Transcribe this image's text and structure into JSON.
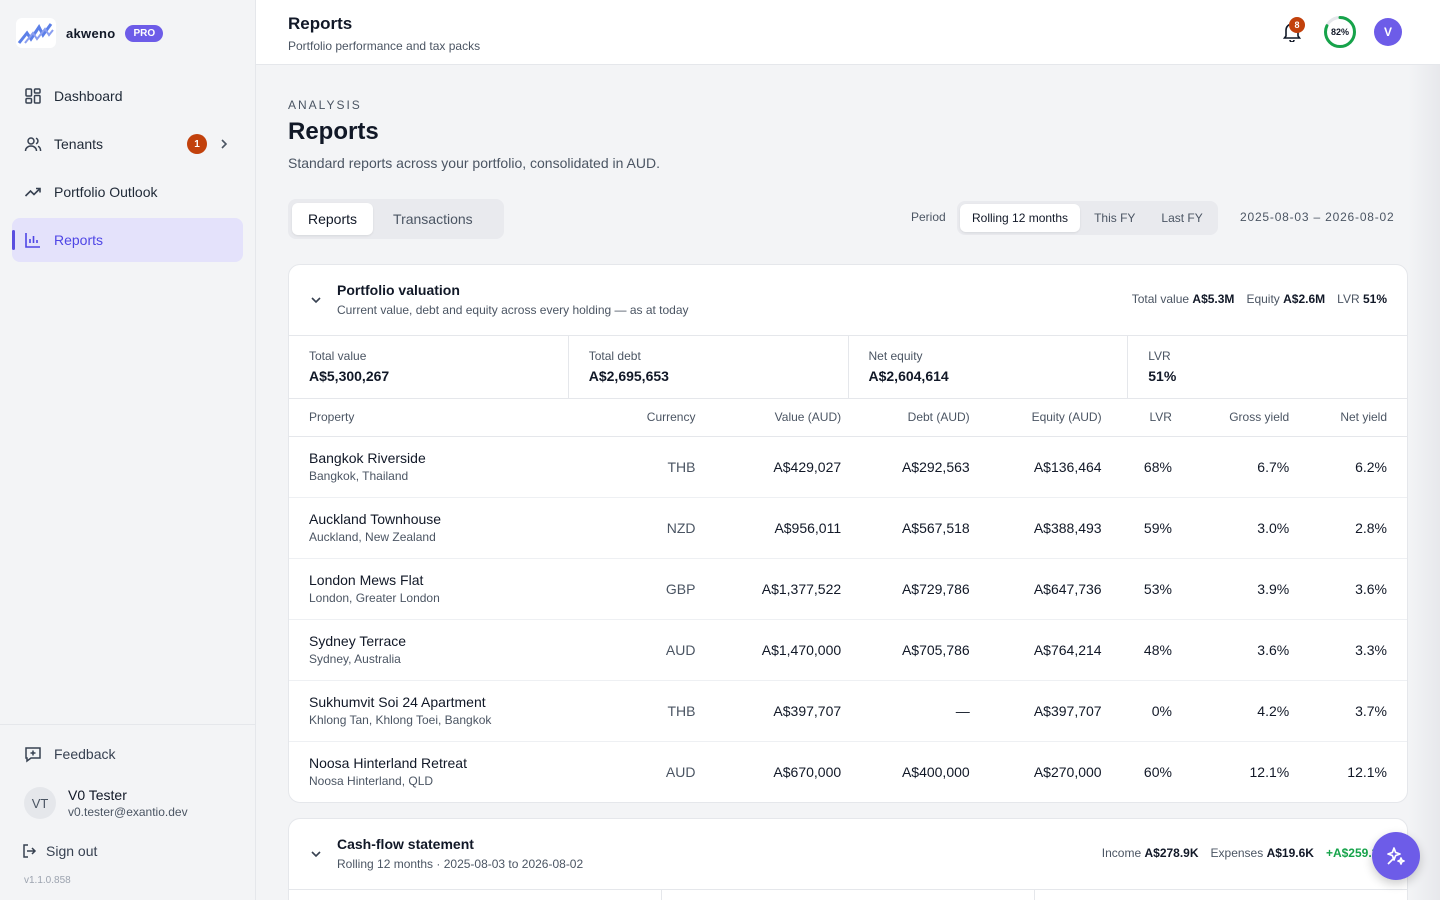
{
  "brand": {
    "name": "akweno",
    "badge": "PRO"
  },
  "sidebar": {
    "items": [
      {
        "label": "Dashboard",
        "icon": "dashboard-icon"
      },
      {
        "label": "Tenants",
        "icon": "users-icon",
        "badge": "1"
      },
      {
        "label": "Portfolio Outlook",
        "icon": "trending-up-icon"
      },
      {
        "label": "Reports",
        "icon": "bar-chart-icon",
        "active": true
      }
    ],
    "feedback": "Feedback",
    "user": {
      "initials": "VT",
      "name": "V0 Tester",
      "email": "v0.tester@exantio.dev"
    },
    "signout": "Sign out",
    "version": "v1.1.0.858"
  },
  "header": {
    "title": "Reports",
    "subtitle": "Portfolio performance and tax packs",
    "notifications": "8",
    "progress": {
      "label": "82%",
      "value": 82
    },
    "avatar": "V"
  },
  "page": {
    "eyebrow": "ANALYSIS",
    "title": "Reports",
    "description": "Standard reports across your portfolio, consolidated in AUD.",
    "tabs": [
      "Reports",
      "Transactions"
    ],
    "period_label": "Period",
    "periods": [
      "Rolling 12 months",
      "This FY",
      "Last FY"
    ],
    "date_range": "2025-08-03 – 2026-08-02"
  },
  "valuation": {
    "title": "Portfolio valuation",
    "subtitle": "Current value, debt and equity across every holding — as at today",
    "summary": {
      "value_label": "Total value",
      "value": "A$5.3M",
      "equity_label": "Equity",
      "equity": "A$2.6M",
      "lvr_label": "LVR",
      "lvr": "51%"
    },
    "kpis": [
      {
        "label": "Total value",
        "value": "A$5,300,267"
      },
      {
        "label": "Total debt",
        "value": "A$2,695,653"
      },
      {
        "label": "Net equity",
        "value": "A$2,604,614"
      },
      {
        "label": "LVR",
        "value": "51%"
      }
    ],
    "columns": [
      "Property",
      "Currency",
      "Value (AUD)",
      "Debt (AUD)",
      "Equity (AUD)",
      "LVR",
      "Gross yield",
      "Net yield"
    ],
    "rows": [
      {
        "name": "Bangkok Riverside",
        "loc": "Bangkok, Thailand",
        "cur": "THB",
        "value": "A$429,027",
        "debt": "A$292,563",
        "equity": "A$136,464",
        "lvr": "68%",
        "gross": "6.7%",
        "net": "6.2%"
      },
      {
        "name": "Auckland Townhouse",
        "loc": "Auckland, New Zealand",
        "cur": "NZD",
        "value": "A$956,011",
        "debt": "A$567,518",
        "equity": "A$388,493",
        "lvr": "59%",
        "gross": "3.0%",
        "net": "2.8%"
      },
      {
        "name": "London Mews Flat",
        "loc": "London, Greater London",
        "cur": "GBP",
        "value": "A$1,377,522",
        "debt": "A$729,786",
        "equity": "A$647,736",
        "lvr": "53%",
        "gross": "3.9%",
        "net": "3.6%"
      },
      {
        "name": "Sydney Terrace",
        "loc": "Sydney, Australia",
        "cur": "AUD",
        "value": "A$1,470,000",
        "debt": "A$705,786",
        "equity": "A$764,214",
        "lvr": "48%",
        "gross": "3.6%",
        "net": "3.3%"
      },
      {
        "name": "Sukhumvit Soi 24 Apartment",
        "loc": "Khlong Tan, Khlong Toei, Bangkok",
        "cur": "THB",
        "value": "A$397,707",
        "debt": "—",
        "equity": "A$397,707",
        "lvr": "0%",
        "gross": "4.2%",
        "net": "3.7%"
      },
      {
        "name": "Noosa Hinterland Retreat",
        "loc": "Noosa Hinterland, QLD",
        "cur": "AUD",
        "value": "A$670,000",
        "debt": "A$400,000",
        "equity": "A$270,000",
        "lvr": "60%",
        "gross": "12.1%",
        "net": "12.1%"
      }
    ]
  },
  "cashflow": {
    "title": "Cash-flow statement",
    "subtitle": "Rolling 12 months · 2025-08-03 to 2026-08-02",
    "income_label": "Income",
    "income": "A$278.9K",
    "expenses_label": "Expenses",
    "expenses": "A$19.6K",
    "net": "+A$259.3K"
  }
}
